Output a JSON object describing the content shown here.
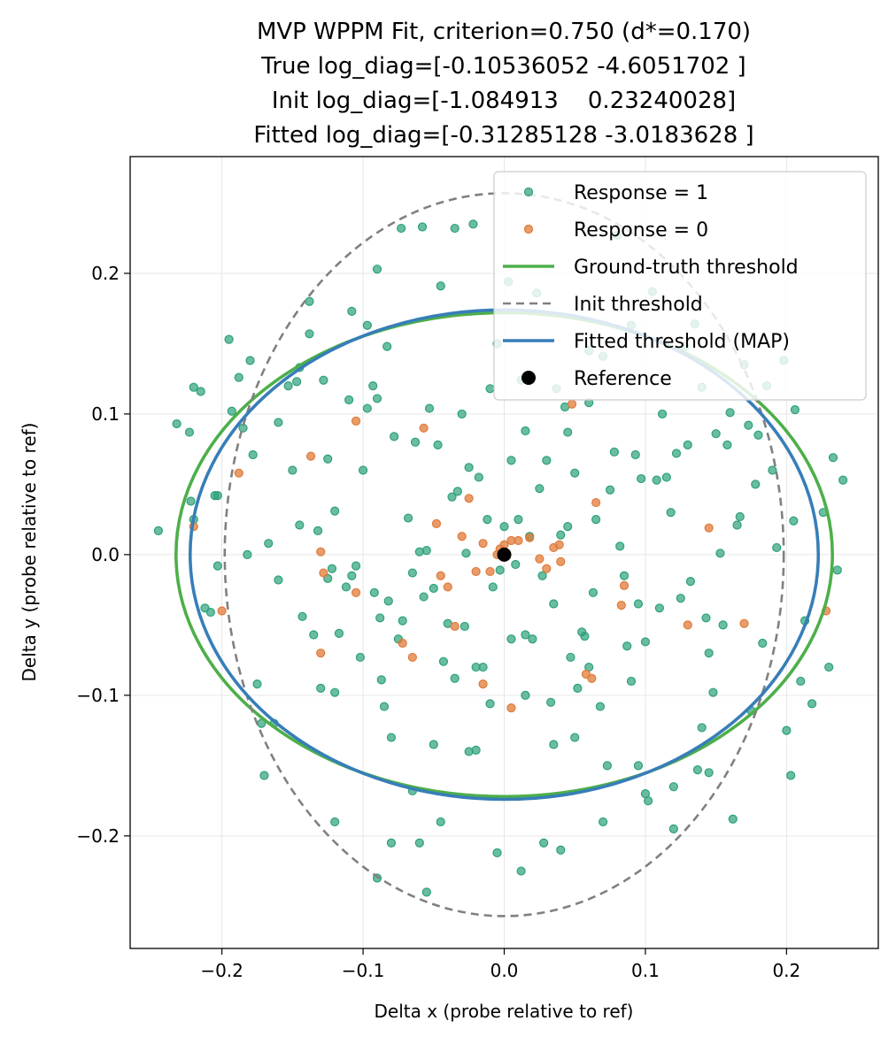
{
  "chart_data": {
    "type": "scatter",
    "title_lines": [
      "MVP WPPM Fit, criterion=0.750 (d*=0.170)",
      "True log_diag=[-0.10536052 -4.6051702 ]",
      "Init log_diag=[-1.084913    0.23240028]",
      "Fitted log_diag=[-0.31285128 -3.0183628 ]"
    ],
    "xlabel": "Delta x (probe relative to ref)",
    "ylabel": "Delta y (probe relative to ref)",
    "xlim": [
      -0.265,
      0.265
    ],
    "ylim": [
      -0.28,
      0.283
    ],
    "xticks": [
      -0.2,
      -0.1,
      0.0,
      0.1,
      0.2
    ],
    "yticks": [
      -0.2,
      -0.1,
      0.0,
      0.1,
      0.2
    ],
    "xtick_labels": [
      "−0.2",
      "−0.1",
      "0.0",
      "0.1",
      "0.2"
    ],
    "ytick_labels": [
      "−0.2",
      "−0.1",
      "0.0",
      "0.1",
      "0.2"
    ],
    "grid": true,
    "legend_position": "upper-right",
    "legend": [
      {
        "label": "Response = 1",
        "kind": "marker",
        "color": "#2ca17a"
      },
      {
        "label": "Response = 0",
        "kind": "marker",
        "color": "#e07b39"
      },
      {
        "label": "Ground-truth threshold",
        "kind": "line",
        "color": "#4daf4a"
      },
      {
        "label": "Init threshold",
        "kind": "dashed",
        "color": "#808080"
      },
      {
        "label": "Fitted threshold (MAP)",
        "kind": "line",
        "color": "#377eb8"
      },
      {
        "label": "Reference",
        "kind": "marker",
        "color": "#000000"
      }
    ],
    "colors": {
      "resp1": "#2ca17a",
      "resp0": "#e07b39",
      "truth": "#4daf4a",
      "init": "#808080",
      "fitted": "#377eb8",
      "reference": "#000000"
    },
    "ellipses": [
      {
        "name": "Ground-truth threshold",
        "center": [
          0,
          0
        ],
        "rx": 0.2325,
        "ry": 0.172
      },
      {
        "name": "Init threshold",
        "center": [
          0,
          0
        ],
        "rx": 0.198,
        "ry": 0.257
      },
      {
        "name": "Fitted threshold (MAP)",
        "center": [
          0,
          0
        ],
        "rx": 0.2225,
        "ry": 0.174
      }
    ],
    "reference": [
      0,
      0
    ],
    "series": [
      {
        "name": "Response = 1",
        "points": [
          [
            -0.245,
            0.017
          ],
          [
            -0.232,
            0.093
          ],
          [
            -0.223,
            0.087
          ],
          [
            -0.22,
            0.119
          ],
          [
            -0.215,
            0.116
          ],
          [
            -0.222,
            0.038
          ],
          [
            -0.22,
            0.025
          ],
          [
            -0.212,
            -0.038
          ],
          [
            -0.208,
            -0.041
          ],
          [
            -0.205,
            0.042
          ],
          [
            -0.203,
            0.042
          ],
          [
            -0.203,
            -0.008
          ],
          [
            -0.195,
            0.153
          ],
          [
            -0.193,
            0.102
          ],
          [
            -0.188,
            0.126
          ],
          [
            -0.185,
            0.09
          ],
          [
            -0.182,
            0.0
          ],
          [
            -0.18,
            0.138
          ],
          [
            -0.178,
            0.071
          ],
          [
            -0.175,
            -0.092
          ],
          [
            -0.172,
            -0.12
          ],
          [
            -0.17,
            -0.157
          ],
          [
            -0.167,
            0.008
          ],
          [
            -0.163,
            -0.12
          ],
          [
            -0.16,
            0.094
          ],
          [
            -0.153,
            0.12
          ],
          [
            -0.15,
            0.06
          ],
          [
            -0.147,
            0.123
          ],
          [
            -0.145,
            0.021
          ],
          [
            -0.143,
            -0.044
          ],
          [
            -0.138,
            0.18
          ],
          [
            -0.138,
            0.157
          ],
          [
            -0.135,
            -0.057
          ],
          [
            -0.132,
            0.017
          ],
          [
            -0.13,
            -0.095
          ],
          [
            -0.128,
            0.124
          ],
          [
            -0.125,
            0.068
          ],
          [
            -0.125,
            -0.017
          ],
          [
            -0.122,
            -0.01
          ],
          [
            -0.12,
            0.031
          ],
          [
            -0.117,
            -0.056
          ],
          [
            -0.112,
            -0.023
          ],
          [
            -0.108,
            0.173
          ],
          [
            -0.108,
            -0.015
          ],
          [
            -0.105,
            -0.008
          ],
          [
            -0.102,
            -0.073
          ],
          [
            -0.1,
            0.06
          ],
          [
            -0.097,
            0.163
          ],
          [
            -0.097,
            0.104
          ],
          [
            -0.093,
            0.12
          ],
          [
            -0.092,
            -0.027
          ],
          [
            -0.09,
            0.203
          ],
          [
            -0.09,
            0.111
          ],
          [
            -0.088,
            -0.045
          ],
          [
            -0.087,
            -0.089
          ],
          [
            -0.085,
            -0.108
          ],
          [
            -0.083,
            0.148
          ],
          [
            -0.082,
            -0.033
          ],
          [
            -0.08,
            -0.13
          ],
          [
            -0.078,
            0.084
          ],
          [
            -0.075,
            -0.06
          ],
          [
            -0.073,
            0.232
          ],
          [
            -0.072,
            -0.047
          ],
          [
            -0.068,
            0.026
          ],
          [
            -0.065,
            -0.013
          ],
          [
            -0.063,
            0.08
          ],
          [
            -0.06,
            0.002
          ],
          [
            -0.058,
            0.233
          ],
          [
            -0.057,
            -0.03
          ],
          [
            -0.055,
            0.003
          ],
          [
            -0.053,
            0.104
          ],
          [
            -0.05,
            -0.024
          ],
          [
            -0.047,
            0.078
          ],
          [
            -0.045,
            0.191
          ],
          [
            -0.043,
            -0.076
          ],
          [
            -0.04,
            -0.049
          ],
          [
            -0.037,
            0.041
          ],
          [
            -0.035,
            0.232
          ],
          [
            -0.033,
            0.045
          ],
          [
            -0.03,
            0.1
          ],
          [
            -0.028,
            -0.051
          ],
          [
            -0.027,
            0.001
          ],
          [
            -0.025,
            0.062
          ],
          [
            -0.022,
            0.235
          ],
          [
            -0.02,
            -0.139
          ],
          [
            -0.018,
            0.055
          ],
          [
            -0.015,
            -0.08
          ],
          [
            -0.012,
            0.025
          ],
          [
            -0.01,
            0.118
          ],
          [
            -0.008,
            -0.023
          ],
          [
            -0.005,
            -0.212
          ],
          [
            -0.003,
            -0.011
          ],
          [
            0.0,
            0.02
          ],
          [
            0.003,
            0.194
          ],
          [
            0.005,
            0.067
          ],
          [
            0.008,
            -0.007
          ],
          [
            0.01,
            0.025
          ],
          [
            0.012,
            0.124
          ],
          [
            0.015,
            -0.057
          ],
          [
            0.018,
            0.013
          ],
          [
            0.02,
            -0.06
          ],
          [
            0.023,
            0.186
          ],
          [
            0.025,
            0.047
          ],
          [
            0.027,
            -0.015
          ],
          [
            0.03,
            0.067
          ],
          [
            0.033,
            -0.105
          ],
          [
            0.035,
            -0.035
          ],
          [
            0.037,
            0.118
          ],
          [
            0.04,
            0.014
          ],
          [
            0.043,
            0.105
          ],
          [
            0.045,
            0.087
          ],
          [
            0.047,
            -0.073
          ],
          [
            0.05,
            0.058
          ],
          [
            0.052,
            -0.095
          ],
          [
            0.055,
            -0.055
          ],
          [
            0.057,
            -0.058
          ],
          [
            0.06,
            0.108
          ],
          [
            0.063,
            -0.027
          ],
          [
            0.065,
            0.025
          ],
          [
            0.068,
            -0.108
          ],
          [
            0.07,
            0.141
          ],
          [
            0.073,
            -0.15
          ],
          [
            0.075,
            0.046
          ],
          [
            0.078,
            0.073
          ],
          [
            0.08,
            0.227
          ],
          [
            0.082,
            0.006
          ],
          [
            0.085,
            -0.015
          ],
          [
            0.087,
            -0.065
          ],
          [
            0.09,
            -0.09
          ],
          [
            0.093,
            0.071
          ],
          [
            0.095,
            -0.035
          ],
          [
            0.097,
            0.054
          ],
          [
            0.1,
            -0.17
          ],
          [
            0.102,
            -0.175
          ],
          [
            0.105,
            0.187
          ],
          [
            0.108,
            0.053
          ],
          [
            0.11,
            -0.038
          ],
          [
            0.112,
            0.1
          ],
          [
            0.115,
            0.055
          ],
          [
            0.118,
            0.03
          ],
          [
            0.12,
            -0.165
          ],
          [
            0.122,
            0.072
          ],
          [
            0.125,
            -0.031
          ],
          [
            0.128,
            0.148
          ],
          [
            0.13,
            0.078
          ],
          [
            0.132,
            -0.019
          ],
          [
            0.135,
            0.164
          ],
          [
            0.137,
            -0.153
          ],
          [
            0.14,
            0.119
          ],
          [
            0.143,
            -0.045
          ],
          [
            0.145,
            -0.07
          ],
          [
            0.148,
            -0.098
          ],
          [
            0.15,
            0.086
          ],
          [
            0.153,
            0.001
          ],
          [
            0.155,
            -0.05
          ],
          [
            0.158,
            0.078
          ],
          [
            0.16,
            0.101
          ],
          [
            0.162,
            -0.188
          ],
          [
            0.165,
            0.021
          ],
          [
            0.167,
            0.027
          ],
          [
            0.17,
            0.135
          ],
          [
            0.173,
            0.092
          ],
          [
            0.175,
            -0.111
          ],
          [
            0.178,
            0.05
          ],
          [
            0.18,
            0.085
          ],
          [
            0.183,
            -0.063
          ],
          [
            0.186,
            0.12
          ],
          [
            0.19,
            0.06
          ],
          [
            0.193,
            0.005
          ],
          [
            0.198,
            0.138
          ],
          [
            0.2,
            -0.125
          ],
          [
            0.203,
            -0.157
          ],
          [
            0.206,
            0.103
          ],
          [
            0.21,
            -0.09
          ],
          [
            0.213,
            -0.047
          ],
          [
            0.218,
            -0.106
          ],
          [
            0.226,
            0.03
          ],
          [
            0.23,
            -0.08
          ],
          [
            0.233,
            0.069
          ],
          [
            0.236,
            -0.011
          ],
          [
            0.24,
            0.053
          ],
          [
            0.205,
            0.024
          ],
          [
            0.015,
            0.088
          ],
          [
            -0.005,
            0.15
          ],
          [
            -0.045,
            -0.19
          ],
          [
            -0.01,
            -0.106
          ],
          [
            0.04,
            -0.21
          ],
          [
            0.07,
            -0.19
          ],
          [
            0.12,
            -0.195
          ],
          [
            -0.12,
            -0.19
          ],
          [
            -0.09,
            -0.23
          ],
          [
            -0.08,
            -0.205
          ],
          [
            -0.06,
            -0.205
          ],
          [
            -0.055,
            -0.24
          ],
          [
            0.012,
            -0.225
          ],
          [
            0.028,
            -0.205
          ],
          [
            -0.16,
            -0.018
          ],
          [
            -0.145,
            0.133
          ],
          [
            0.06,
            0.145
          ],
          [
            -0.11,
            0.11
          ],
          [
            -0.065,
            -0.168
          ],
          [
            0.09,
            0.163
          ],
          [
            0.14,
            -0.123
          ],
          [
            0.1,
            -0.062
          ],
          [
            -0.025,
            -0.14
          ],
          [
            0.035,
            -0.135
          ],
          [
            -0.02,
            -0.08
          ],
          [
            0.015,
            -0.1
          ],
          [
            0.05,
            -0.13
          ],
          [
            0.095,
            -0.15
          ],
          [
            0.145,
            -0.155
          ],
          [
            -0.05,
            -0.135
          ],
          [
            -0.12,
            -0.098
          ],
          [
            0.06,
            -0.08
          ],
          [
            -0.035,
            -0.088
          ],
          [
            0.005,
            -0.06
          ],
          [
            0.045,
            0.02
          ]
        ]
      },
      {
        "name": "Response = 0",
        "points": [
          [
            -0.22,
            0.02
          ],
          [
            -0.2,
            -0.04
          ],
          [
            -0.188,
            0.058
          ],
          [
            -0.137,
            0.07
          ],
          [
            -0.13,
            0.002
          ],
          [
            -0.128,
            -0.013
          ],
          [
            -0.13,
            -0.07
          ],
          [
            -0.105,
            0.095
          ],
          [
            -0.105,
            -0.027
          ],
          [
            -0.072,
            -0.063
          ],
          [
            -0.057,
            0.09
          ],
          [
            -0.048,
            0.022
          ],
          [
            -0.045,
            -0.015
          ],
          [
            -0.04,
            -0.023
          ],
          [
            -0.035,
            -0.051
          ],
          [
            -0.03,
            0.013
          ],
          [
            -0.02,
            -0.012
          ],
          [
            -0.015,
            0.008
          ],
          [
            -0.01,
            -0.012
          ],
          [
            -0.005,
            0.0
          ],
          [
            0.005,
            0.01
          ],
          [
            0.01,
            0.01
          ],
          [
            0.018,
            0.012
          ],
          [
            0.025,
            -0.003
          ],
          [
            0.03,
            -0.01
          ],
          [
            0.035,
            0.005
          ],
          [
            0.04,
            -0.005
          ],
          [
            0.048,
            0.107
          ],
          [
            -0.065,
            -0.073
          ],
          [
            -0.025,
            0.04
          ],
          [
            -0.015,
            -0.092
          ],
          [
            0.005,
            -0.109
          ],
          [
            0.058,
            -0.085
          ],
          [
            0.062,
            -0.088
          ],
          [
            0.065,
            0.037
          ],
          [
            0.085,
            -0.022
          ],
          [
            0.083,
            -0.036
          ],
          [
            0.13,
            -0.05
          ],
          [
            0.145,
            0.019
          ],
          [
            0.17,
            -0.049
          ],
          [
            0.228,
            -0.04
          ],
          [
            0.039,
            0.007
          ],
          [
            0.0,
            0.007
          ],
          [
            -0.003,
            0.004
          ]
        ]
      }
    ]
  }
}
